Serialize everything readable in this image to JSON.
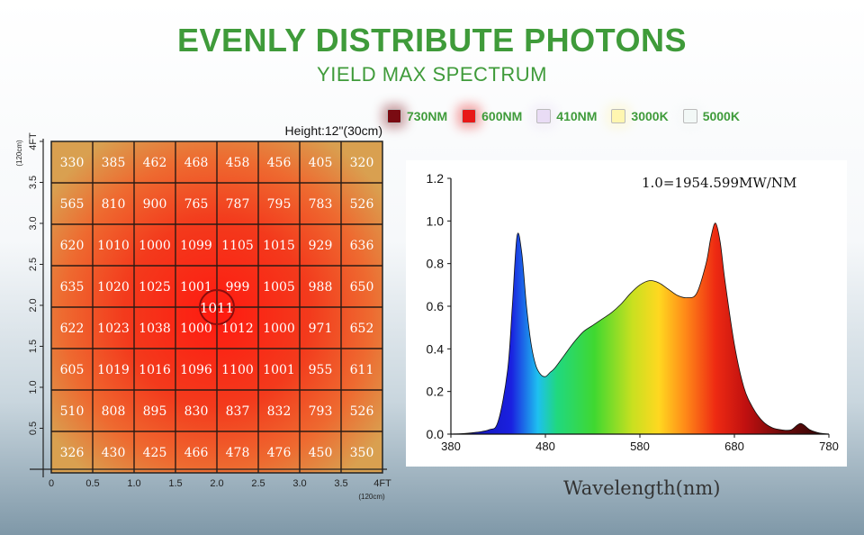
{
  "title": "EVENLY DISTRIBUTE PHOTONS",
  "subtitle": "YIELD MAX SPECTRUM",
  "legend": [
    {
      "label": "730NM",
      "color": "#7a0b12"
    },
    {
      "label": "600NM",
      "color": "#e81818"
    },
    {
      "label": "410NM",
      "color": "#e9dcf5"
    },
    {
      "label": "3000K",
      "color": "#fff6b0"
    },
    {
      "label": "5000K",
      "color": "#f2f8f6"
    }
  ],
  "chart_data": [
    {
      "type": "heatmap",
      "title": "Height:12\"(30cm)",
      "x_ticks": [
        "0",
        "0.5",
        "1.0",
        "1.5",
        "2.0",
        "2.5",
        "3.0",
        "3.5",
        "4FT"
      ],
      "x_unit": "(120cm)",
      "y_ticks": [
        "0.5",
        "1.0",
        "1.5",
        "2.0",
        "2.5",
        "3.0",
        "3.5",
        "4FT"
      ],
      "y_unit": "(120cm)",
      "xlim": [
        0,
        4
      ],
      "ylim": [
        0,
        4
      ],
      "rows_top_to_bottom": [
        [
          330,
          385,
          462,
          468,
          458,
          456,
          405,
          320
        ],
        [
          565,
          810,
          900,
          765,
          787,
          795,
          783,
          526
        ],
        [
          620,
          1010,
          1000,
          1099,
          1105,
          1015,
          929,
          636
        ],
        [
          635,
          1020,
          1025,
          1001,
          999,
          1005,
          988,
          650
        ],
        [
          622,
          1023,
          1038,
          1000,
          1012,
          1000,
          971,
          652
        ],
        [
          605,
          1019,
          1016,
          1096,
          1100,
          1001,
          955,
          611
        ],
        [
          510,
          808,
          895,
          830,
          837,
          832,
          793,
          526
        ],
        [
          326,
          430,
          425,
          466,
          478,
          476,
          450,
          350
        ]
      ],
      "center_value": "1011"
    },
    {
      "type": "area",
      "annotation": "1.0=1954.599MW/NM",
      "xlabel": "Wavelength(nm)",
      "x_ticks": [
        "380",
        "480",
        "580",
        "680",
        "780"
      ],
      "y_ticks": [
        "0.0",
        "0.2",
        "0.4",
        "0.6",
        "0.8",
        "1.0",
        "1.2"
      ],
      "xlim": [
        380,
        780
      ],
      "ylim": [
        0,
        1.2
      ],
      "series": [
        {
          "x": [
            380,
            400,
            420,
            430,
            440,
            445,
            450,
            455,
            460,
            465,
            470,
            475,
            480,
            485,
            490,
            500,
            510,
            520,
            530,
            540,
            550,
            560,
            570,
            580,
            590,
            600,
            610,
            620,
            630,
            640,
            650,
            655,
            660,
            665,
            670,
            680,
            690,
            700,
            710,
            720,
            730,
            740,
            750,
            760,
            770,
            780
          ],
          "values": [
            0.0,
            0.005,
            0.02,
            0.06,
            0.3,
            0.6,
            0.93,
            0.85,
            0.6,
            0.42,
            0.32,
            0.28,
            0.27,
            0.29,
            0.31,
            0.37,
            0.43,
            0.48,
            0.51,
            0.54,
            0.57,
            0.61,
            0.66,
            0.7,
            0.72,
            0.71,
            0.68,
            0.65,
            0.64,
            0.66,
            0.8,
            0.92,
            0.99,
            0.9,
            0.72,
            0.42,
            0.22,
            0.12,
            0.06,
            0.03,
            0.02,
            0.02,
            0.05,
            0.02,
            0.005,
            0.0
          ]
        }
      ]
    }
  ]
}
